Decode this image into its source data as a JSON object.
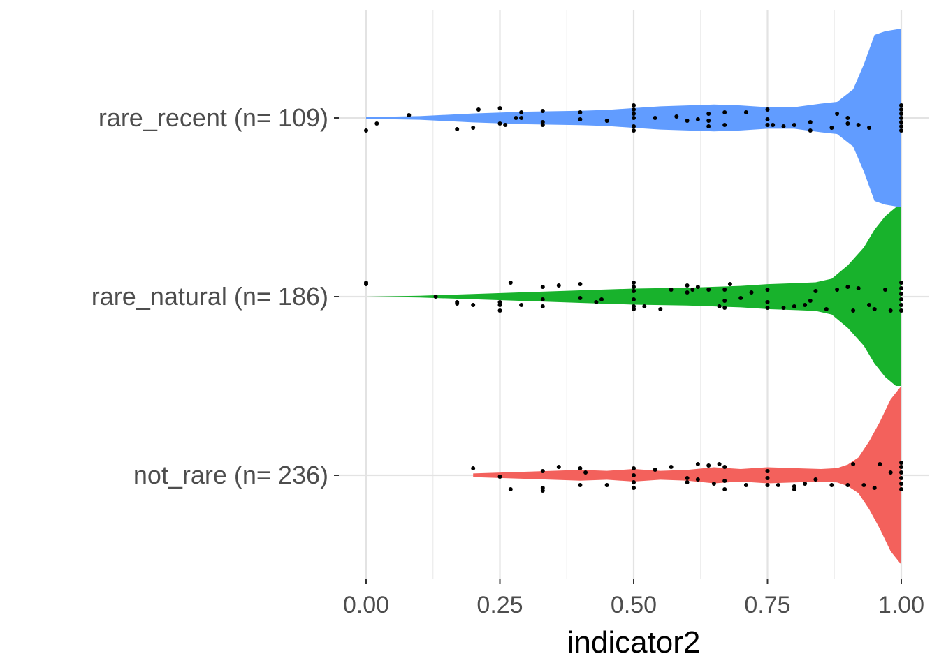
{
  "chart_data": {
    "type": "violin",
    "orientation": "horizontal",
    "xlabel": "indicator2",
    "ylabel": "",
    "xlim": [
      0,
      1
    ],
    "x_ticks": [
      "0.00",
      "0.25",
      "0.50",
      "0.75",
      "1.00"
    ],
    "grid": true,
    "legend": "none",
    "categories": [
      "rare_recent (n= 109)",
      "rare_natural (n= 186)",
      "not_rare (n= 236)"
    ],
    "series": [
      {
        "category": "rare_recent (n= 109)",
        "color": "#619CFF",
        "density": [
          [
            0.0,
            0.01
          ],
          [
            0.1,
            0.02
          ],
          [
            0.2,
            0.05
          ],
          [
            0.3,
            0.07
          ],
          [
            0.4,
            0.08
          ],
          [
            0.45,
            0.09
          ],
          [
            0.5,
            0.11
          ],
          [
            0.55,
            0.13
          ],
          [
            0.6,
            0.14
          ],
          [
            0.65,
            0.15
          ],
          [
            0.7,
            0.14
          ],
          [
            0.75,
            0.12
          ],
          [
            0.8,
            0.12
          ],
          [
            0.85,
            0.16
          ],
          [
            0.88,
            0.18
          ],
          [
            0.91,
            0.32
          ],
          [
            0.93,
            0.6
          ],
          [
            0.95,
            0.93
          ],
          [
            0.97,
            0.97
          ],
          [
            1.0,
            1.0
          ]
        ],
        "points": [
          [
            0.0,
            0.09
          ],
          [
            0.02,
            0.04
          ],
          [
            0.08,
            -0.02
          ],
          [
            0.17,
            0.08
          ],
          [
            0.2,
            0.07
          ],
          [
            0.21,
            -0.06
          ],
          [
            0.25,
            0.04
          ],
          [
            0.25,
            -0.07
          ],
          [
            0.26,
            0.05
          ],
          [
            0.28,
            0.0
          ],
          [
            0.29,
            -0.04
          ],
          [
            0.29,
            0.0
          ],
          [
            0.33,
            0.05
          ],
          [
            0.33,
            0.03
          ],
          [
            0.33,
            -0.05
          ],
          [
            0.4,
            0.01
          ],
          [
            0.4,
            -0.04
          ],
          [
            0.45,
            0.02
          ],
          [
            0.5,
            0.09
          ],
          [
            0.5,
            0.06
          ],
          [
            0.5,
            0.0
          ],
          [
            0.5,
            -0.03
          ],
          [
            0.5,
            -0.06
          ],
          [
            0.5,
            -0.09
          ],
          [
            0.54,
            0.0
          ],
          [
            0.58,
            -0.01
          ],
          [
            0.6,
            0.02
          ],
          [
            0.62,
            0.01
          ],
          [
            0.64,
            0.06
          ],
          [
            0.64,
            0.02
          ],
          [
            0.64,
            -0.03
          ],
          [
            0.67,
            0.05
          ],
          [
            0.67,
            -0.04
          ],
          [
            0.71,
            -0.04
          ],
          [
            0.75,
            0.05
          ],
          [
            0.75,
            0.01
          ],
          [
            0.75,
            -0.06
          ],
          [
            0.76,
            0.05
          ],
          [
            0.78,
            0.06
          ],
          [
            0.8,
            0.05
          ],
          [
            0.83,
            0.09
          ],
          [
            0.83,
            0.03
          ],
          [
            0.87,
            0.07
          ],
          [
            0.88,
            -0.03
          ],
          [
            0.9,
            0.04
          ],
          [
            0.9,
            0.0
          ],
          [
            0.92,
            0.05
          ],
          [
            0.94,
            0.07
          ],
          [
            1.0,
            0.09
          ],
          [
            1.0,
            0.06
          ],
          [
            1.0,
            0.03
          ],
          [
            1.0,
            0.0
          ],
          [
            1.0,
            -0.03
          ],
          [
            1.0,
            -0.06
          ],
          [
            1.0,
            -0.09
          ]
        ]
      },
      {
        "category": "rare_natural (n= 186)",
        "color": "#18B22C",
        "density": [
          [
            0.0,
            0.0
          ],
          [
            0.1,
            0.01
          ],
          [
            0.2,
            0.03
          ],
          [
            0.3,
            0.05
          ],
          [
            0.4,
            0.07
          ],
          [
            0.5,
            0.09
          ],
          [
            0.6,
            0.1
          ],
          [
            0.7,
            0.12
          ],
          [
            0.75,
            0.14
          ],
          [
            0.8,
            0.15
          ],
          [
            0.84,
            0.16
          ],
          [
            0.87,
            0.2
          ],
          [
            0.9,
            0.35
          ],
          [
            0.93,
            0.55
          ],
          [
            0.95,
            0.75
          ],
          [
            0.97,
            0.9
          ],
          [
            0.99,
            1.0
          ],
          [
            1.0,
            1.0
          ]
        ],
        "points": [
          [
            0.0,
            -0.09
          ],
          [
            0.0,
            -0.1
          ],
          [
            0.13,
            0.0
          ],
          [
            0.17,
            0.04
          ],
          [
            0.17,
            0.05
          ],
          [
            0.2,
            0.06
          ],
          [
            0.25,
            0.1
          ],
          [
            0.25,
            0.06
          ],
          [
            0.25,
            0.04
          ],
          [
            0.27,
            -0.1
          ],
          [
            0.29,
            0.06
          ],
          [
            0.33,
            0.07
          ],
          [
            0.33,
            0.02
          ],
          [
            0.33,
            -0.07
          ],
          [
            0.36,
            -0.08
          ],
          [
            0.4,
            0.01
          ],
          [
            0.4,
            -0.09
          ],
          [
            0.43,
            0.04
          ],
          [
            0.44,
            0.02
          ],
          [
            0.5,
            0.09
          ],
          [
            0.5,
            0.07
          ],
          [
            0.5,
            0.02
          ],
          [
            0.5,
            -0.04
          ],
          [
            0.5,
            -0.07
          ],
          [
            0.5,
            -0.1
          ],
          [
            0.52,
            0.07
          ],
          [
            0.55,
            0.09
          ],
          [
            0.57,
            -0.05
          ],
          [
            0.6,
            -0.03
          ],
          [
            0.6,
            -0.08
          ],
          [
            0.61,
            -0.05
          ],
          [
            0.62,
            -0.07
          ],
          [
            0.64,
            -0.05
          ],
          [
            0.66,
            0.07
          ],
          [
            0.67,
            0.08
          ],
          [
            0.67,
            0.03
          ],
          [
            0.67,
            -0.05
          ],
          [
            0.68,
            -0.09
          ],
          [
            0.7,
            0.01
          ],
          [
            0.72,
            -0.03
          ],
          [
            0.75,
            0.08
          ],
          [
            0.75,
            0.04
          ],
          [
            0.75,
            -0.05
          ],
          [
            0.78,
            0.08
          ],
          [
            0.8,
            0.07
          ],
          [
            0.82,
            0.06
          ],
          [
            0.83,
            0.03
          ],
          [
            0.84,
            -0.04
          ],
          [
            0.86,
            0.09
          ],
          [
            0.88,
            -0.05
          ],
          [
            0.9,
            -0.07
          ],
          [
            0.91,
            0.1
          ],
          [
            0.92,
            -0.06
          ],
          [
            0.94,
            0.06
          ],
          [
            0.95,
            0.09
          ],
          [
            0.97,
            -0.05
          ],
          [
            0.98,
            0.1
          ],
          [
            1.0,
            0.1
          ],
          [
            1.0,
            0.06
          ],
          [
            1.0,
            0.02
          ],
          [
            1.0,
            -0.02
          ],
          [
            1.0,
            -0.06
          ],
          [
            1.0,
            -0.1
          ]
        ]
      },
      {
        "category": "not_rare (n= 236)",
        "color": "#F3615C",
        "density": [
          [
            0.2,
            0.02
          ],
          [
            0.3,
            0.04
          ],
          [
            0.4,
            0.06
          ],
          [
            0.45,
            0.05
          ],
          [
            0.5,
            0.07
          ],
          [
            0.55,
            0.05
          ],
          [
            0.6,
            0.06
          ],
          [
            0.65,
            0.09
          ],
          [
            0.7,
            0.07
          ],
          [
            0.75,
            0.09
          ],
          [
            0.8,
            0.08
          ],
          [
            0.85,
            0.07
          ],
          [
            0.88,
            0.08
          ],
          [
            0.9,
            0.12
          ],
          [
            0.92,
            0.2
          ],
          [
            0.94,
            0.38
          ],
          [
            0.96,
            0.6
          ],
          [
            0.98,
            0.85
          ],
          [
            1.0,
            1.0
          ]
        ],
        "points": [
          [
            0.2,
            -0.05
          ],
          [
            0.25,
            0.01
          ],
          [
            0.27,
            0.1
          ],
          [
            0.33,
            0.11
          ],
          [
            0.33,
            0.09
          ],
          [
            0.33,
            -0.03
          ],
          [
            0.36,
            -0.06
          ],
          [
            0.4,
            0.07
          ],
          [
            0.4,
            -0.05
          ],
          [
            0.41,
            -0.02
          ],
          [
            0.45,
            0.07
          ],
          [
            0.5,
            0.09
          ],
          [
            0.5,
            0.05
          ],
          [
            0.5,
            0.0
          ],
          [
            0.5,
            -0.05
          ],
          [
            0.54,
            -0.04
          ],
          [
            0.57,
            -0.06
          ],
          [
            0.6,
            0.05
          ],
          [
            0.6,
            0.02
          ],
          [
            0.62,
            0.03
          ],
          [
            0.62,
            -0.08
          ],
          [
            0.64,
            -0.07
          ],
          [
            0.65,
            0.06
          ],
          [
            0.66,
            -0.08
          ],
          [
            0.67,
            0.1
          ],
          [
            0.67,
            0.04
          ],
          [
            0.67,
            -0.06
          ],
          [
            0.71,
            0.07
          ],
          [
            0.75,
            0.07
          ],
          [
            0.75,
            0.02
          ],
          [
            0.75,
            -0.03
          ],
          [
            0.77,
            0.07
          ],
          [
            0.8,
            0.08
          ],
          [
            0.8,
            0.1
          ],
          [
            0.82,
            0.06
          ],
          [
            0.84,
            0.03
          ],
          [
            0.87,
            0.07
          ],
          [
            0.9,
            0.07
          ],
          [
            0.91,
            -0.08
          ],
          [
            0.93,
            0.07
          ],
          [
            0.95,
            0.09
          ],
          [
            0.96,
            -0.08
          ],
          [
            0.98,
            -0.02
          ],
          [
            1.0,
            0.1
          ],
          [
            1.0,
            0.06
          ],
          [
            1.0,
            0.02
          ],
          [
            1.0,
            -0.02
          ],
          [
            1.0,
            -0.06
          ],
          [
            1.0,
            -0.09
          ]
        ]
      }
    ]
  }
}
